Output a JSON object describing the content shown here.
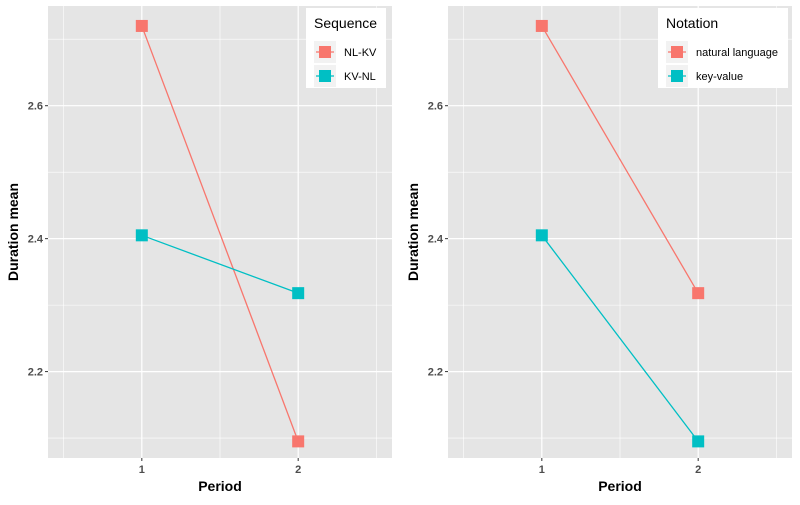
{
  "chart_data": [
    {
      "type": "line",
      "x": [
        1,
        2
      ],
      "xlabel": "Period",
      "ylabel": "Duration mean",
      "xlim": [
        0.4,
        2.6
      ],
      "ylim": [
        2.07,
        2.75
      ],
      "xticks": [
        "1",
        "2"
      ],
      "yticks": [
        "2.2",
        "2.4",
        "2.6"
      ],
      "ytick_values": [
        2.2,
        2.4,
        2.6
      ],
      "xtick_values": [
        1,
        2
      ],
      "grid": true,
      "legend": {
        "title": "Sequence",
        "position": "top-right"
      },
      "series": [
        {
          "name": "NL-KV",
          "values": [
            2.72,
            2.095
          ],
          "color": "#F8766D"
        },
        {
          "name": "KV-NL",
          "values": [
            2.405,
            2.318
          ],
          "color": "#00BFC4"
        }
      ]
    },
    {
      "type": "line",
      "x": [
        1,
        2
      ],
      "xlabel": "Period",
      "ylabel": "Duration mean",
      "xlim": [
        0.4,
        2.6
      ],
      "ylim": [
        2.07,
        2.75
      ],
      "xticks": [
        "1",
        "2"
      ],
      "yticks": [
        "2.2",
        "2.4",
        "2.6"
      ],
      "ytick_values": [
        2.2,
        2.4,
        2.6
      ],
      "xtick_values": [
        1,
        2
      ],
      "grid": true,
      "legend": {
        "title": "Notation",
        "position": "top-right"
      },
      "series": [
        {
          "name": "natural language",
          "values": [
            2.72,
            2.318
          ],
          "color": "#F8766D"
        },
        {
          "name": "key-value",
          "values": [
            2.405,
            2.095
          ],
          "color": "#00BFC4"
        }
      ]
    }
  ],
  "colors": {
    "panel_bg": "#E5E5E5",
    "grid": "#FFFFFF",
    "tick_text": "#4D4D4D"
  }
}
